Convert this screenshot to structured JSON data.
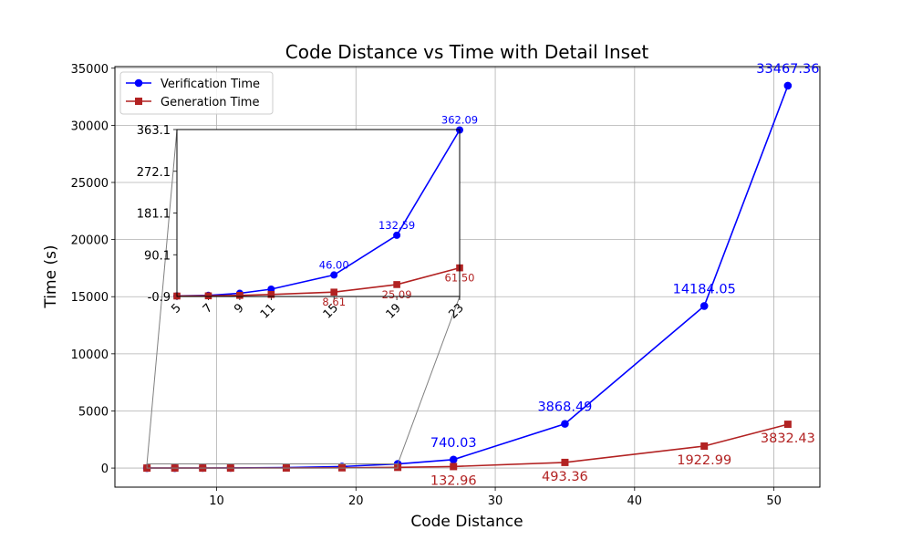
{
  "chart_data": {
    "type": "line",
    "title": "Code Distance vs Time with Detail Inset",
    "xlabel": "Code Distance",
    "ylabel": "Time (s)",
    "xlim": [
      2.7,
      53.3
    ],
    "ylim": [
      -1670,
      35140
    ],
    "xticks": [
      10,
      20,
      30,
      40,
      50
    ],
    "yticks": [
      0,
      5000,
      10000,
      15000,
      20000,
      25000,
      30000,
      35000
    ],
    "grid": true,
    "legend_position": "top-left",
    "x": [
      5,
      7,
      9,
      11,
      15,
      19,
      23,
      27,
      35,
      45,
      51
    ],
    "series": [
      {
        "name": "Verification Time",
        "color": "#0000ff",
        "marker": "circle",
        "values": [
          0.3,
          1.5,
          6.0,
          15.0,
          46.0,
          132.59,
          362.09,
          740.03,
          3868.49,
          14184.05,
          33467.36
        ],
        "point_labels": [
          "",
          "",
          "",
          "",
          "",
          "",
          "",
          "740.03",
          "3868.49",
          "14184.05",
          "33467.36"
        ]
      },
      {
        "name": "Generation Time",
        "color": "#b22222",
        "marker": "square",
        "values": [
          0.1,
          0.5,
          1.5,
          3.5,
          8.61,
          25.09,
          61.5,
          132.96,
          493.36,
          1922.99,
          3832.43
        ],
        "point_labels": [
          "",
          "",
          "",
          "",
          "",
          "",
          "",
          "132.96",
          "493.36",
          "1922.99",
          "3832.43"
        ]
      }
    ],
    "inset": {
      "x": [
        5,
        7,
        9,
        11,
        15,
        19,
        23
      ],
      "xlim": [
        5,
        23
      ],
      "ylim": [
        -0.9,
        363.1
      ],
      "xticks": [
        5,
        7,
        9,
        11,
        15,
        19,
        23
      ],
      "yticks": [
        -0.9,
        90.1,
        181.1,
        272.1,
        363.1
      ],
      "ytick_labels": [
        "-0.9",
        "90.1",
        "181.1",
        "272.1",
        "363.1"
      ],
      "verification_labels": [
        "",
        "",
        "",
        "",
        "46.00",
        "132.59",
        "362.09"
      ],
      "generation_labels": [
        "",
        "",
        "",
        "",
        "8.61",
        "25.09",
        "61.50"
      ]
    }
  }
}
